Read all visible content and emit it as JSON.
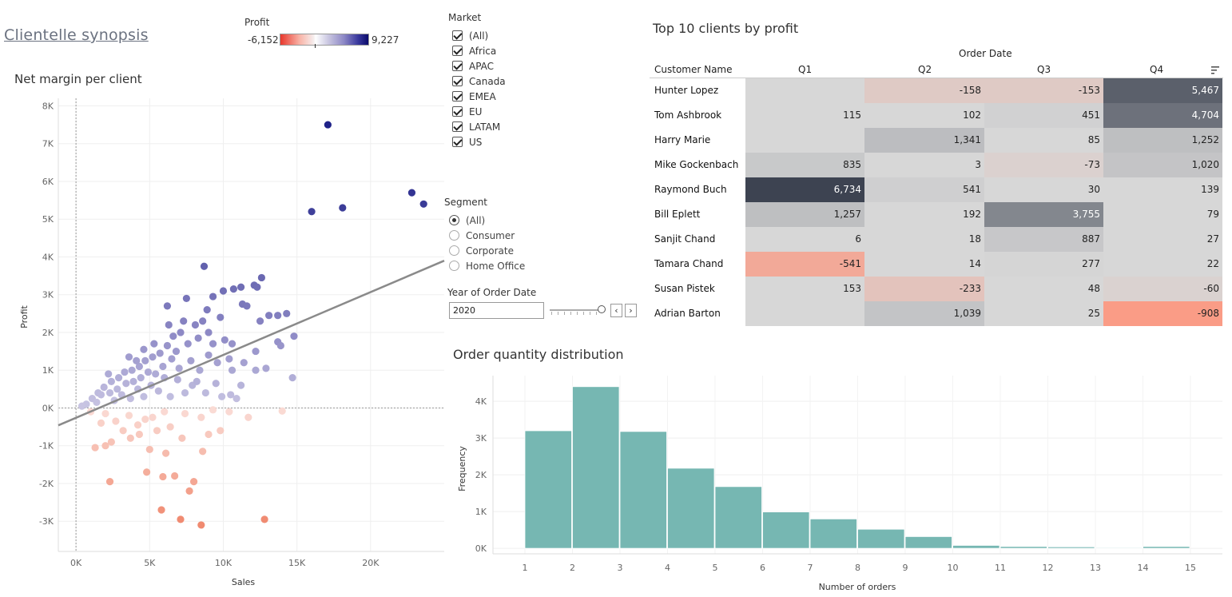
{
  "dashboard": {
    "title": "Clientelle synopsis"
  },
  "legend": {
    "title": "Profit",
    "min_label": "-6,152",
    "max_label": "9,227"
  },
  "market_filter": {
    "title": "Market",
    "options": [
      "(All)",
      "Africa",
      "APAC",
      "Canada",
      "EMEA",
      "EU",
      "LATAM",
      "US"
    ]
  },
  "segment_filter": {
    "title": "Segment",
    "options": [
      "(All)",
      "Consumer",
      "Corporate",
      "Home Office"
    ],
    "selected": "(All)"
  },
  "year_filter": {
    "title": "Year of Order Date",
    "value": "2020",
    "prev_label": "‹",
    "next_label": "›"
  },
  "colors": {
    "neg_strong": "#f08a70",
    "neg_light": "#fadcd6",
    "pos_light": "#c9c6e3",
    "pos_mid": "#8d89c5",
    "pos_strong": "#1f2288",
    "hist_fill": "#76b7b2",
    "trend": "#8a8a8a"
  },
  "chart_data": [
    {
      "type": "scatter",
      "title": "Net margin per client",
      "xlabel": "Sales",
      "ylabel": "Profit",
      "xlim": [
        -1200,
        25000
      ],
      "ylim": [
        -3800,
        8200
      ],
      "x_ticks": [
        0,
        5000,
        10000,
        15000,
        20000
      ],
      "x_tick_labels": [
        "0K",
        "5K",
        "10K",
        "15K",
        "20K"
      ],
      "y_ticks": [
        -3000,
        -2000,
        -1000,
        0,
        1000,
        2000,
        3000,
        4000,
        5000,
        6000,
        7000,
        8000
      ],
      "y_tick_labels": [
        "-3K",
        "-2K",
        "-1K",
        "0K",
        "1K",
        "2K",
        "3K",
        "4K",
        "5K",
        "6K",
        "7K",
        "8K"
      ],
      "trend_line": {
        "x": [
          -1200,
          25000
        ],
        "y": [
          -460,
          3900
        ]
      },
      "points": [
        [
          17100,
          7500
        ],
        [
          22800,
          5700
        ],
        [
          23600,
          5400
        ],
        [
          18100,
          5300
        ],
        [
          16000,
          5200
        ],
        [
          8700,
          3750
        ],
        [
          12600,
          3450
        ],
        [
          11200,
          3200
        ],
        [
          10700,
          3150
        ],
        [
          12100,
          3250
        ],
        [
          12300,
          3200
        ],
        [
          6200,
          2700
        ],
        [
          7500,
          2900
        ],
        [
          9300,
          2950
        ],
        [
          10000,
          3100
        ],
        [
          11300,
          2750
        ],
        [
          11600,
          2700
        ],
        [
          14300,
          2500
        ],
        [
          13700,
          2450
        ],
        [
          13100,
          2450
        ],
        [
          12500,
          2300
        ],
        [
          14800,
          1900
        ],
        [
          13700,
          1750
        ],
        [
          13900,
          1650
        ],
        [
          12200,
          1500
        ],
        [
          14700,
          800
        ],
        [
          12900,
          1050
        ],
        [
          12200,
          1000
        ],
        [
          11400,
          1200
        ],
        [
          10600,
          1000
        ],
        [
          10400,
          1300
        ],
        [
          10100,
          1800
        ],
        [
          10600,
          1700
        ],
        [
          9300,
          1700
        ],
        [
          9000,
          2000
        ],
        [
          8600,
          2300
        ],
        [
          8100,
          2200
        ],
        [
          7300,
          2300
        ],
        [
          7100,
          2000
        ],
        [
          6600,
          1900
        ],
        [
          6200,
          1650
        ],
        [
          5700,
          1450
        ],
        [
          5200,
          1350
        ],
        [
          4700,
          1250
        ],
        [
          4300,
          1100
        ],
        [
          3800,
          1000
        ],
        [
          3300,
          950
        ],
        [
          2900,
          800
        ],
        [
          2400,
          700
        ],
        [
          1900,
          550
        ],
        [
          1500,
          400
        ],
        [
          1100,
          250
        ],
        [
          700,
          100
        ],
        [
          400,
          50
        ],
        [
          6800,
          1500
        ],
        [
          7600,
          1700
        ],
        [
          8300,
          1850
        ],
        [
          9000,
          1400
        ],
        [
          9600,
          1200
        ],
        [
          8400,
          1000
        ],
        [
          7800,
          1250
        ],
        [
          7000,
          1050
        ],
        [
          6500,
          1300
        ],
        [
          5900,
          1100
        ],
        [
          5400,
          900
        ],
        [
          4900,
          950
        ],
        [
          4400,
          800
        ],
        [
          3900,
          700
        ],
        [
          3400,
          650
        ],
        [
          2800,
          500
        ],
        [
          2300,
          400
        ],
        [
          1700,
          350
        ],
        [
          6000,
          800
        ],
        [
          6900,
          750
        ],
        [
          7900,
          600
        ],
        [
          8800,
          400
        ],
        [
          9900,
          300
        ],
        [
          10500,
          350
        ],
        [
          11200,
          600
        ],
        [
          8200,
          700
        ],
        [
          7400,
          400
        ],
        [
          6400,
          300
        ],
        [
          5600,
          450
        ],
        [
          4600,
          300
        ],
        [
          3700,
          250
        ],
        [
          2600,
          200
        ],
        [
          1400,
          150
        ],
        [
          4200,
          500
        ],
        [
          5100,
          600
        ],
        [
          3100,
          350
        ],
        [
          9500,
          650
        ],
        [
          10900,
          250
        ],
        [
          5300,
          1700
        ],
        [
          4600,
          1550
        ],
        [
          6300,
          2200
        ],
        [
          8900,
          2600
        ],
        [
          9800,
          2400
        ],
        [
          4100,
          1250
        ],
        [
          3600,
          1350
        ],
        [
          2200,
          900
        ],
        [
          12800,
          -2950
        ],
        [
          8500,
          -3100
        ],
        [
          7100,
          -2950
        ],
        [
          5800,
          -2700
        ],
        [
          7700,
          -2200
        ],
        [
          6700,
          -1800
        ],
        [
          8000,
          -1950
        ],
        [
          5900,
          -1820
        ],
        [
          4800,
          -1700
        ],
        [
          2300,
          -1950
        ],
        [
          8600,
          -1150
        ],
        [
          6100,
          -1200
        ],
        [
          5000,
          -1100
        ],
        [
          1300,
          -1050
        ],
        [
          2000,
          -1000
        ],
        [
          2400,
          -900
        ],
        [
          3700,
          -800
        ],
        [
          3200,
          -600
        ],
        [
          4300,
          -700
        ],
        [
          5500,
          -600
        ],
        [
          6400,
          -500
        ],
        [
          7200,
          -800
        ],
        [
          9000,
          -700
        ],
        [
          9800,
          -600
        ],
        [
          11700,
          -250
        ],
        [
          14000,
          -80
        ],
        [
          10400,
          -100
        ],
        [
          8500,
          -250
        ],
        [
          4700,
          -300
        ],
        [
          2700,
          -350
        ],
        [
          1700,
          -400
        ],
        [
          3600,
          -200
        ],
        [
          6000,
          -100
        ],
        [
          7400,
          -150
        ],
        [
          9300,
          -50
        ],
        [
          4200,
          -450
        ],
        [
          5200,
          -250
        ],
        [
          2000,
          -150
        ],
        [
          1000,
          -100
        ]
      ]
    },
    {
      "type": "heatmap",
      "title": "Top 10 clients by profit",
      "column_group": "Order Date",
      "row_header": "Customer Name",
      "columns": [
        "Q1",
        "Q2",
        "Q3",
        "Q4"
      ],
      "rows": [
        {
          "name": "Hunter Lopez",
          "values": [
            null,
            -158,
            -153,
            5467
          ],
          "labels": [
            "",
            "-158",
            "-153",
            "5,467"
          ]
        },
        {
          "name": "Tom Ashbrook",
          "values": [
            115,
            102,
            451,
            4704
          ],
          "labels": [
            "115",
            "102",
            "451",
            "4,704"
          ]
        },
        {
          "name": "Harry Marie",
          "values": [
            null,
            1341,
            85,
            1252
          ],
          "labels": [
            "",
            "1,341",
            "85",
            "1,252"
          ]
        },
        {
          "name": "Mike Gockenbach",
          "values": [
            835,
            3,
            -73,
            1020
          ],
          "labels": [
            "835",
            "3",
            "-73",
            "1,020"
          ]
        },
        {
          "name": "Raymond Buch",
          "values": [
            6734,
            541,
            30,
            139
          ],
          "labels": [
            "6,734",
            "541",
            "30",
            "139"
          ]
        },
        {
          "name": "Bill Eplett",
          "values": [
            1257,
            192,
            3755,
            79
          ],
          "labels": [
            "1,257",
            "192",
            "3,755",
            "79"
          ]
        },
        {
          "name": "Sanjit Chand",
          "values": [
            6,
            18,
            887,
            27
          ],
          "labels": [
            "6",
            "18",
            "887",
            "27"
          ]
        },
        {
          "name": "Tamara Chand",
          "values": [
            -541,
            14,
            277,
            22
          ],
          "labels": [
            "-541",
            "14",
            "277",
            "22"
          ]
        },
        {
          "name": "Susan Pistek",
          "values": [
            153,
            -233,
            48,
            -60
          ],
          "labels": [
            "153",
            "-233",
            "48",
            "-60"
          ]
        },
        {
          "name": "Adrian Barton",
          "values": [
            null,
            1039,
            25,
            -908
          ],
          "labels": [
            "",
            "1,039",
            "25",
            "-908"
          ]
        }
      ]
    },
    {
      "type": "bar",
      "title": "Order quantity distribution",
      "xlabel": "Number of orders",
      "ylabel": "Frequency",
      "categories": [
        "1",
        "2",
        "3",
        "4",
        "5",
        "6",
        "7",
        "8",
        "9",
        "10",
        "11",
        "12",
        "13",
        "14",
        "15"
      ],
      "values": [
        3200,
        4400,
        3180,
        2180,
        1680,
        990,
        800,
        520,
        320,
        80,
        50,
        40,
        20,
        50,
        0
      ],
      "ylim": [
        -150,
        4700
      ],
      "y_ticks": [
        0,
        1000,
        2000,
        3000,
        4000
      ],
      "y_tick_labels": [
        "0K",
        "1K",
        "2K",
        "3K",
        "4K"
      ]
    }
  ]
}
